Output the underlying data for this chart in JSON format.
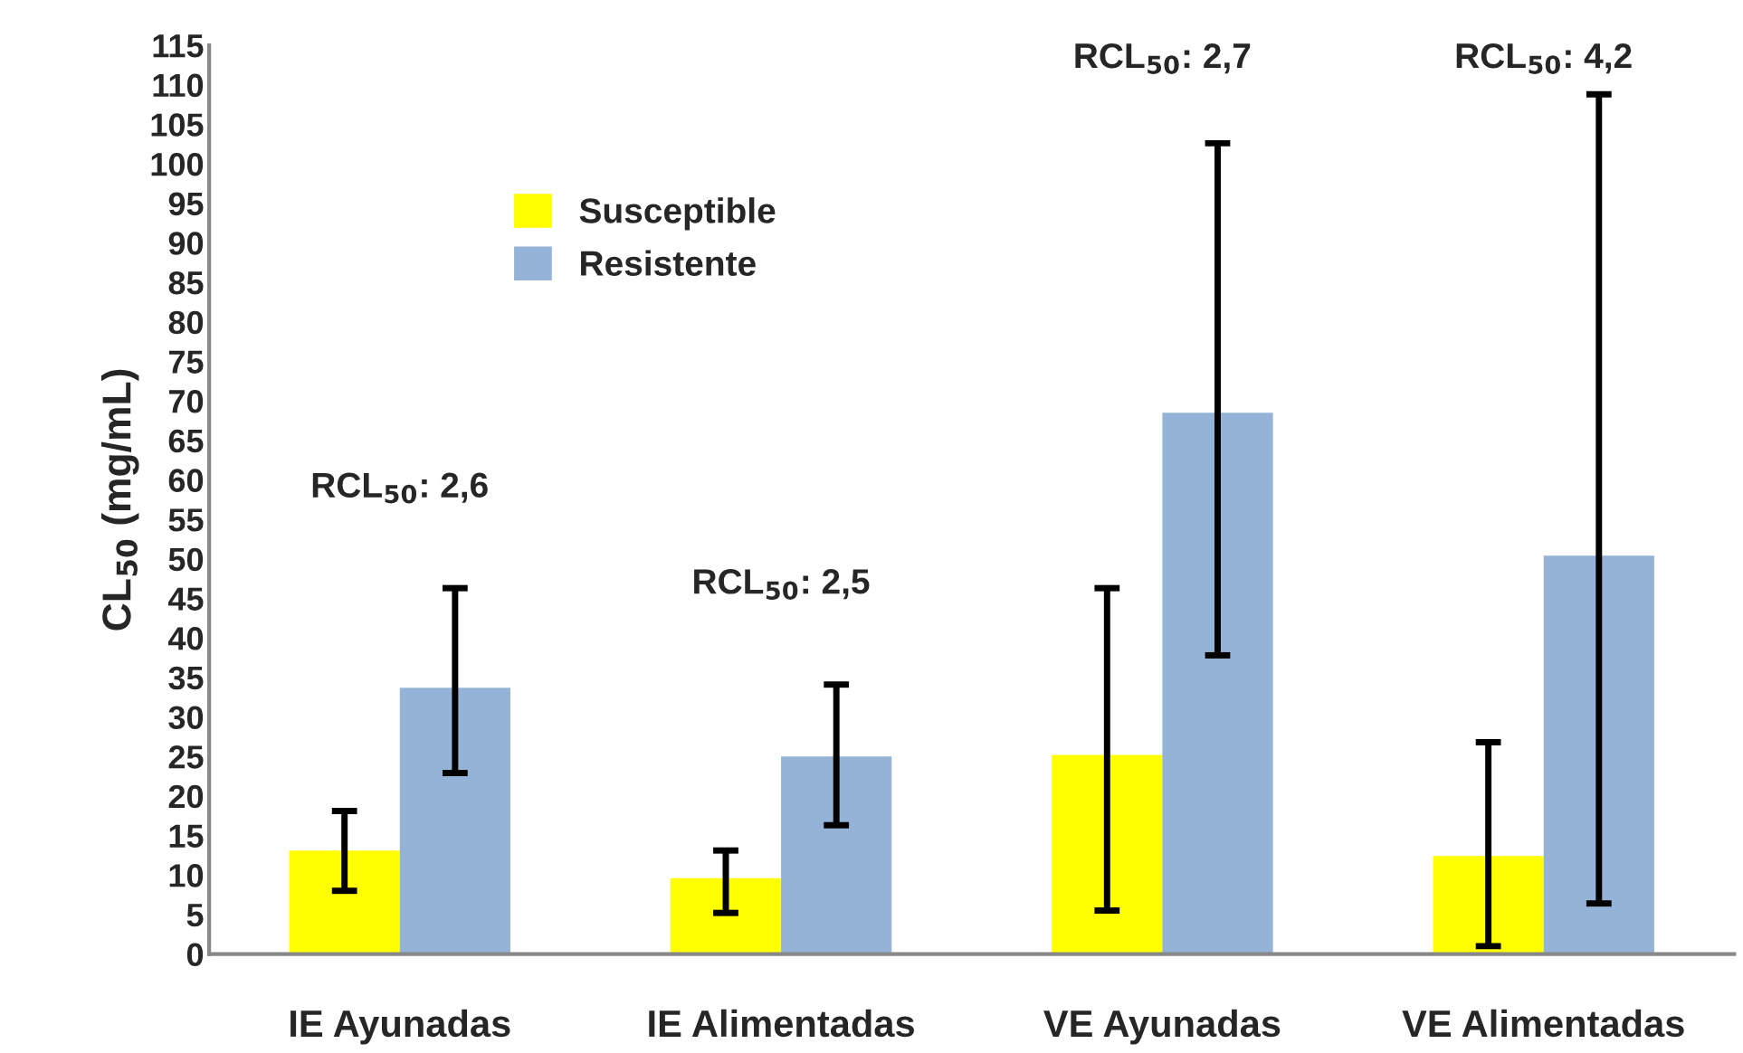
{
  "chart_data": {
    "type": "bar",
    "ylabel": "CL$_{50}$ (mg/mL)",
    "categories": [
      "IE Ayunadas",
      "IE Alimentadas",
      "VE Ayunadas",
      "VE Alimentadas"
    ],
    "series": [
      {
        "name": "Susceptible",
        "color": "#ffff00",
        "values": [
          13.1,
          9.6,
          25.2,
          12.4
        ],
        "errors": [
          [
            8.0,
            18.1
          ],
          [
            5.2,
            13.1
          ],
          [
            5.5,
            46.3
          ],
          [
            1.0,
            26.8
          ]
        ]
      },
      {
        "name": "Resistente",
        "color": "#95b3d7",
        "values": [
          33.7,
          25.0,
          68.5,
          50.4
        ],
        "errors": [
          [
            22.9,
            46.3
          ],
          [
            16.3,
            34.1
          ],
          [
            37.8,
            102.6
          ],
          [
            6.4,
            108.8
          ]
        ]
      }
    ],
    "ylim": [
      0,
      115
    ],
    "yticks": [
      0,
      5,
      10,
      15,
      20,
      25,
      30,
      35,
      40,
      45,
      50,
      55,
      60,
      65,
      70,
      75,
      80,
      85,
      90,
      95,
      100,
      105,
      110,
      115
    ],
    "annotations": [
      "RCL$_{50}$: 2,6",
      "RCL$_{50}$: 2,5",
      "RCL$_{50}$: 2,7",
      "RCL$_{50}$: 4,2"
    ],
    "grid": false,
    "legend": "top left"
  }
}
